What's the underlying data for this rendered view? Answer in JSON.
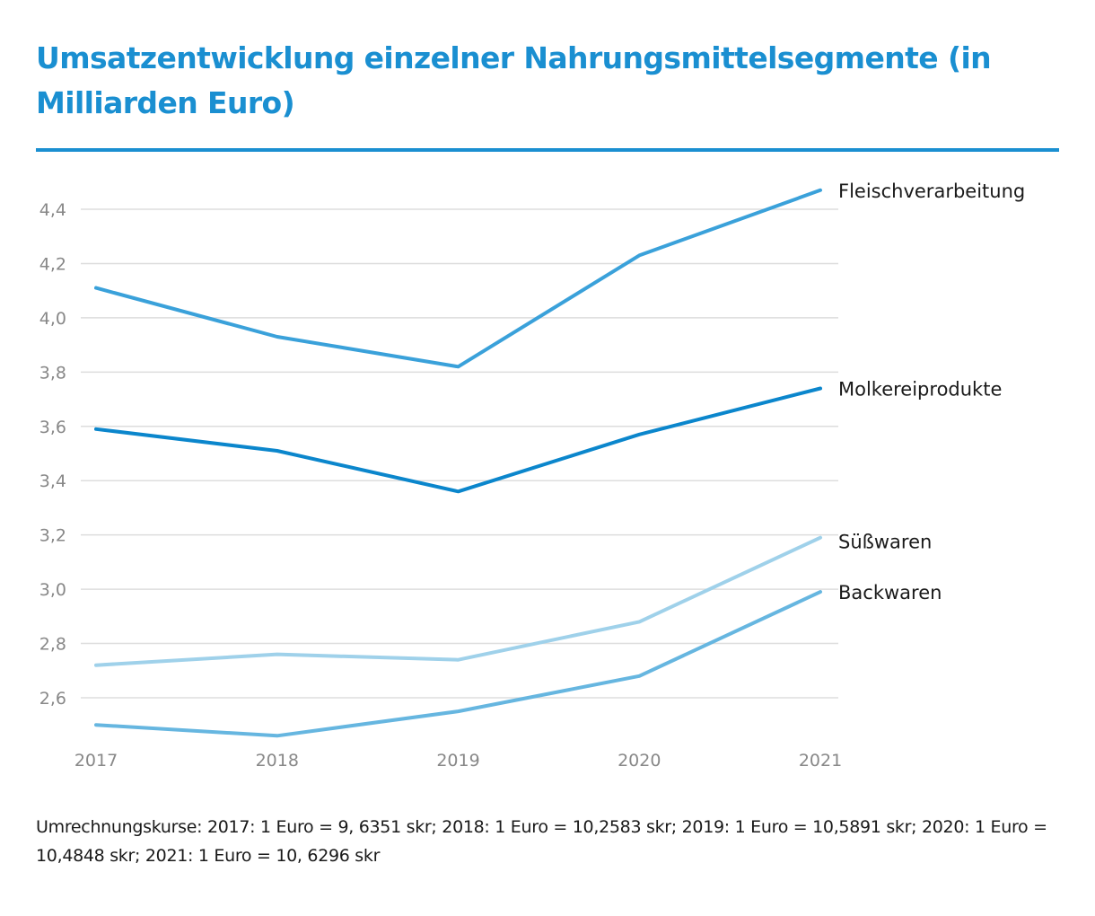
{
  "colors": {
    "title": "#1a8fd1",
    "grid": "#dddddd",
    "tick": "#888888",
    "label": "#1a1a1a"
  },
  "chart_data": {
    "type": "line",
    "title": "Umsatzentwicklung einzelner Nahrungsmittelsegmente (in Milliarden Euro)",
    "x": [
      "2017",
      "2018",
      "2019",
      "2020",
      "2021"
    ],
    "ylim": [
      2.45,
      4.5
    ],
    "yticks": [
      2.6,
      2.8,
      3.0,
      3.2,
      3.4,
      3.6,
      3.8,
      4.0,
      4.2,
      4.4
    ],
    "ytick_labels": [
      "2,6",
      "2,8",
      "3,0",
      "3,2",
      "3,4",
      "3,6",
      "3,8",
      "4,0",
      "4,2",
      "4,4"
    ],
    "grid": true,
    "legend": "direct labels at line ends",
    "series": [
      {
        "name": "Fleischverarbeitung",
        "values": [
          4.11,
          3.93,
          3.82,
          4.23,
          4.47
        ],
        "color": "#3aa1da"
      },
      {
        "name": "Molkereiprodukte",
        "values": [
          3.59,
          3.51,
          3.36,
          3.57,
          3.74
        ],
        "color": "#0b86cc"
      },
      {
        "name": "Süßwaren",
        "values": [
          2.72,
          2.76,
          2.74,
          2.88,
          3.19
        ],
        "color": "#9fd1ea"
      },
      {
        "name": "Backwaren",
        "values": [
          2.5,
          2.46,
          2.55,
          2.68,
          2.99
        ],
        "color": "#66b6e0"
      }
    ]
  },
  "footnote": "Umrechnungskurse: 2017: 1 Euro = 9, 6351 skr; 2018: 1 Euro = 10,2583 skr; 2019: 1 Euro = 10,5891 skr; 2020: 1 Euro = 10,4848 skr; 2021: 1 Euro = 10, 6296 skr"
}
